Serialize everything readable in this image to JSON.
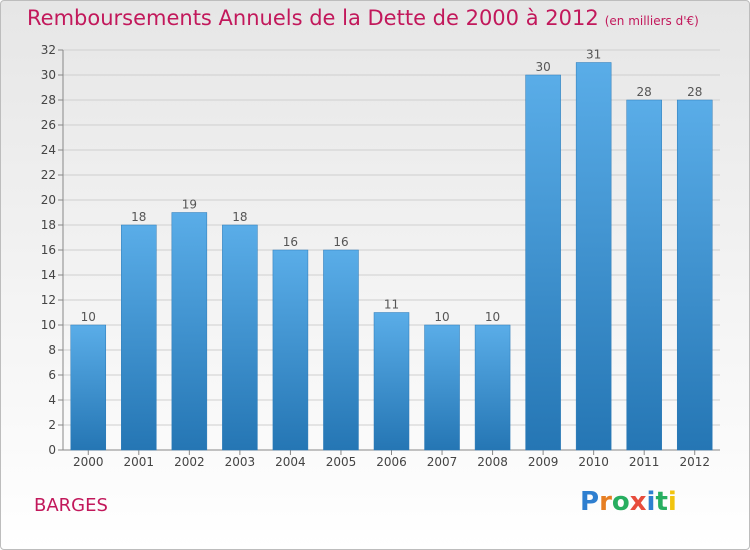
{
  "title": {
    "main": "Remboursements Annuels de la Dette de 2000 à 2012",
    "unit": "(en milliers d'€)"
  },
  "commune": "BARGES",
  "logo": {
    "text": "Proxiti",
    "letter_colors": [
      "#2e7fd0",
      "#e67e22",
      "#27ae60",
      "#e74c3c",
      "#2e7fd0",
      "#27ae60",
      "#f1c40f"
    ]
  },
  "chart_data": {
    "type": "bar",
    "categories": [
      "2000",
      "2001",
      "2002",
      "2003",
      "2004",
      "2005",
      "2006",
      "2007",
      "2008",
      "2009",
      "2010",
      "2011",
      "2012"
    ],
    "values": [
      10,
      18,
      19,
      18,
      16,
      16,
      11,
      10,
      10,
      30,
      31,
      28,
      28
    ],
    "ylim": [
      0,
      32
    ],
    "yticks": [
      0,
      2,
      4,
      6,
      8,
      10,
      12,
      14,
      16,
      18,
      20,
      22,
      24,
      26,
      28,
      30,
      32
    ],
    "grid": true,
    "bar_color_top": "#5aade8",
    "bar_color_bottom": "#2576b4",
    "label_color": "#555555"
  }
}
